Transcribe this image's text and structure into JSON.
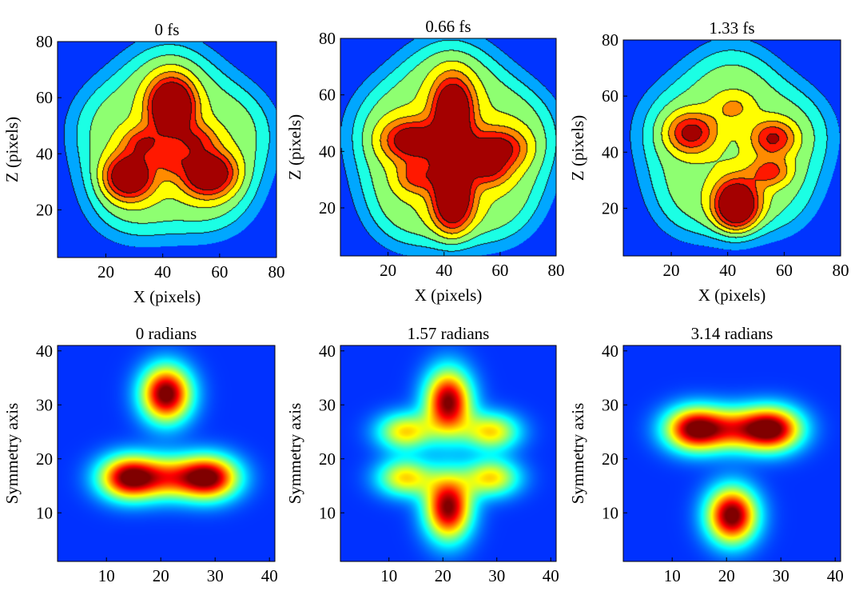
{
  "chart_data": [
    {
      "type": "heatmap",
      "title": "0 fs",
      "xlabel": "X (pixels)",
      "ylabel": "Z (pixels)",
      "xlim": [
        3,
        80
      ],
      "ylim": [
        3,
        80
      ],
      "xticks": [
        20,
        40,
        60,
        80
      ],
      "yticks": [
        20,
        40,
        60,
        80
      ],
      "style": "contour",
      "background": 0.0,
      "envelope": {
        "cx": 43,
        "cy": 43,
        "r": 34,
        "amp": 0.48,
        "edge": 4
      },
      "blobs": [
        {
          "x": 43,
          "y": 57,
          "amp": 0.88,
          "sx": 5.5,
          "sy": 7
        },
        {
          "x": 28,
          "y": 32,
          "amp": 0.72,
          "sx": 6,
          "sy": 5.5
        },
        {
          "x": 56,
          "y": 33,
          "amp": 0.72,
          "sx": 6.5,
          "sy": 5.5
        },
        {
          "x": 33,
          "y": 44,
          "amp": 0.35,
          "sx": 5,
          "sy": 4
        },
        {
          "x": 52,
          "y": 45,
          "amp": 0.3,
          "sx": 5,
          "sy": 4
        },
        {
          "x": 43,
          "y": 38,
          "amp": 0.25,
          "sx": 4,
          "sy": 4
        }
      ]
    },
    {
      "type": "heatmap",
      "title": "0.66 fs",
      "xlabel": "X (pixels)",
      "ylabel": "Z (pixels)",
      "xlim": [
        3,
        80
      ],
      "ylim": [
        3,
        80
      ],
      "xticks": [
        20,
        40,
        60,
        80
      ],
      "yticks": [
        20,
        40,
        60,
        80
      ],
      "style": "contour",
      "background": 0.0,
      "envelope": {
        "cx": 43,
        "cy": 41,
        "r": 36,
        "amp": 0.5,
        "edge": 4
      },
      "blobs": [
        {
          "x": 43,
          "y": 55,
          "amp": 0.72,
          "sx": 5,
          "sy": 8
        },
        {
          "x": 43,
          "y": 24,
          "amp": 0.75,
          "sx": 5,
          "sy": 9
        },
        {
          "x": 28,
          "y": 44,
          "amp": 0.55,
          "sx": 7,
          "sy": 5
        },
        {
          "x": 59,
          "y": 41,
          "amp": 0.5,
          "sx": 7,
          "sy": 5
        },
        {
          "x": 43,
          "y": 40,
          "amp": 0.35,
          "sx": 6,
          "sy": 6
        },
        {
          "x": 30,
          "y": 31,
          "amp": 0.3,
          "sx": 5,
          "sy": 4
        },
        {
          "x": 56,
          "y": 33,
          "amp": 0.3,
          "sx": 5,
          "sy": 4
        }
      ]
    },
    {
      "type": "heatmap",
      "title": "1.33 fs",
      "xlabel": "X (pixels)",
      "ylabel": "Z (pixels)",
      "xlim": [
        3,
        80
      ],
      "ylim": [
        3,
        80
      ],
      "xticks": [
        20,
        40,
        60,
        80
      ],
      "yticks": [
        20,
        40,
        60,
        80
      ],
      "style": "contour",
      "background": 0.0,
      "envelope": {
        "cx": 42,
        "cy": 42,
        "r": 33,
        "amp": 0.46,
        "edge": 4
      },
      "blobs": [
        {
          "x": 43,
          "y": 21,
          "amp": 0.85,
          "sx": 5.5,
          "sy": 6.5
        },
        {
          "x": 27,
          "y": 47,
          "amp": 0.5,
          "sx": 6,
          "sy": 5
        },
        {
          "x": 56,
          "y": 45,
          "amp": 0.45,
          "sx": 5.5,
          "sy": 4.5
        },
        {
          "x": 55,
          "y": 33,
          "amp": 0.35,
          "sx": 5,
          "sy": 3.5
        },
        {
          "x": 42,
          "y": 56,
          "amp": 0.2,
          "sx": 5,
          "sy": 4
        }
      ]
    },
    {
      "type": "heatmap",
      "title": "0 radians",
      "xlabel": "",
      "ylabel": "Symmetry axis",
      "xlim": [
        1,
        41
      ],
      "ylim": [
        1,
        41
      ],
      "xticks": [
        10,
        20,
        30,
        40
      ],
      "yticks": [
        10,
        20,
        30,
        40
      ],
      "style": "smooth",
      "background": 0.06,
      "blobs": [
        {
          "x": 21,
          "y": 32,
          "amp": 1.0,
          "sx": 3.2,
          "sy": 3.6
        },
        {
          "x": 14,
          "y": 16.5,
          "amp": 0.9,
          "sx": 3.8,
          "sy": 2.8
        },
        {
          "x": 29,
          "y": 16.5,
          "amp": 0.9,
          "sx": 3.8,
          "sy": 2.8
        },
        {
          "x": 21.5,
          "y": 16.5,
          "amp": 0.55,
          "sx": 4.5,
          "sy": 2.8
        }
      ]
    },
    {
      "type": "heatmap",
      "title": "1.57 radians",
      "xlabel": "",
      "ylabel": "Symmetry axis",
      "xlim": [
        1,
        41
      ],
      "ylim": [
        1,
        41
      ],
      "xticks": [
        10,
        20,
        30,
        40
      ],
      "yticks": [
        10,
        20,
        30,
        40
      ],
      "style": "smooth",
      "background": 0.06,
      "blobs": [
        {
          "x": 21,
          "y": 30.5,
          "amp": 0.95,
          "sx": 3.0,
          "sy": 4.2
        },
        {
          "x": 21,
          "y": 11,
          "amp": 0.95,
          "sx": 3.0,
          "sy": 4.2
        },
        {
          "x": 13,
          "y": 25,
          "amp": 0.55,
          "sx": 3.6,
          "sy": 2.4
        },
        {
          "x": 29,
          "y": 25,
          "amp": 0.55,
          "sx": 3.6,
          "sy": 2.4
        },
        {
          "x": 13,
          "y": 16.5,
          "amp": 0.55,
          "sx": 3.6,
          "sy": 2.4
        },
        {
          "x": 29,
          "y": 16.5,
          "amp": 0.55,
          "sx": 3.6,
          "sy": 2.4
        }
      ]
    },
    {
      "type": "heatmap",
      "title": "3.14 radians",
      "xlabel": "",
      "ylabel": "Symmetry axis",
      "xlim": [
        1,
        41
      ],
      "ylim": [
        1,
        41
      ],
      "xticks": [
        10,
        20,
        30,
        40
      ],
      "yticks": [
        10,
        20,
        30,
        40
      ],
      "style": "smooth",
      "background": 0.06,
      "blobs": [
        {
          "x": 21,
          "y": 9.5,
          "amp": 1.0,
          "sx": 3.2,
          "sy": 3.6
        },
        {
          "x": 14,
          "y": 25.5,
          "amp": 0.9,
          "sx": 3.8,
          "sy": 2.8
        },
        {
          "x": 28.5,
          "y": 25.5,
          "amp": 0.9,
          "sx": 3.8,
          "sy": 2.8
        },
        {
          "x": 21.5,
          "y": 25.5,
          "amp": 0.55,
          "sx": 4.5,
          "sy": 2.8
        }
      ]
    }
  ]
}
